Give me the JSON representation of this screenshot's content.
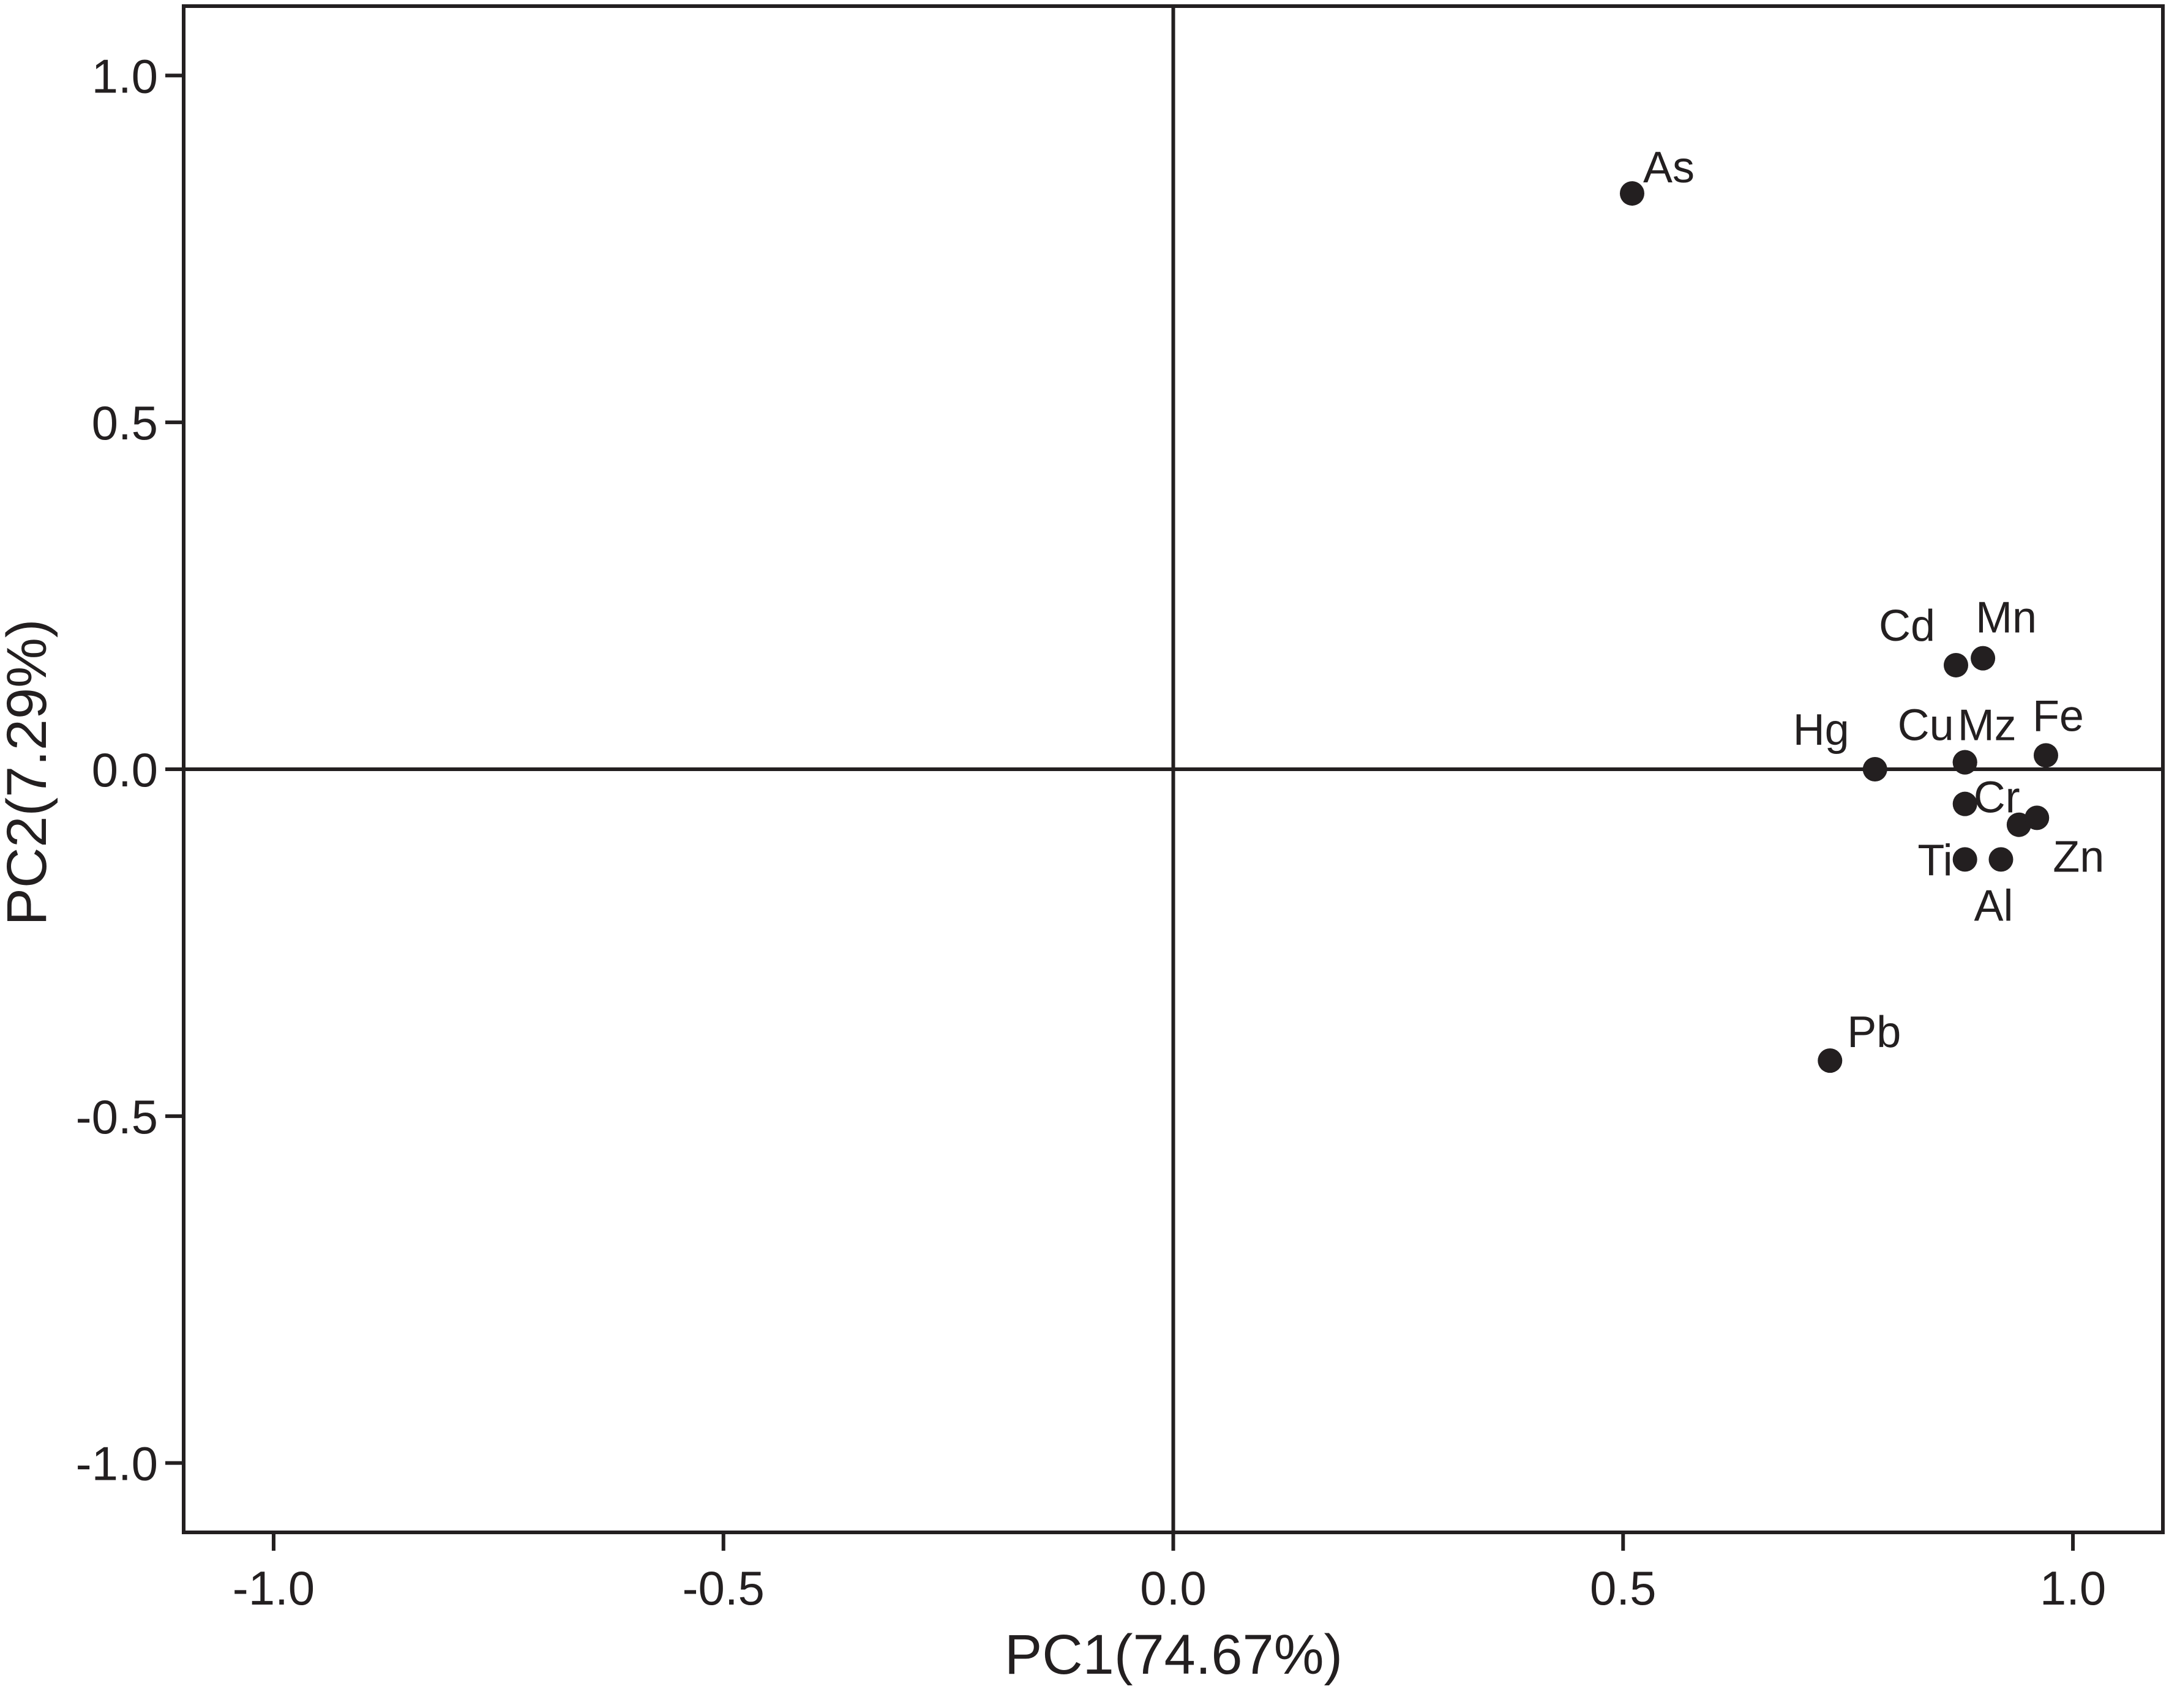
{
  "chart_data": {
    "type": "scatter",
    "title": "",
    "xlabel": "PC1(74.67%)",
    "ylabel": "PC2(7.29%)",
    "xlim": [
      -1.1,
      1.1
    ],
    "ylim": [
      -1.1,
      1.1
    ],
    "xticks": [
      {
        "value": -1.0,
        "label": "-1.0"
      },
      {
        "value": -0.5,
        "label": "-0.5"
      },
      {
        "value": 0.0,
        "label": "0.0"
      },
      {
        "value": 0.5,
        "label": "0.5"
      },
      {
        "value": 1.0,
        "label": "1.0"
      }
    ],
    "yticks": [
      {
        "value": 1.0,
        "label": "1.0"
      },
      {
        "value": 0.5,
        "label": "0.5"
      },
      {
        "value": 0.0,
        "label": "0.0"
      },
      {
        "value": -0.5,
        "label": "-0.5"
      },
      {
        "value": -1.0,
        "label": "-1.0"
      }
    ],
    "reference_lines": {
      "x": 0,
      "y": 0
    },
    "grid": false,
    "legend": "none",
    "marker_color": "#231f20",
    "points": [
      {
        "label": "As",
        "x": 0.51,
        "y": 0.83
      },
      {
        "label": "Cd",
        "x": 0.87,
        "y": 0.15
      },
      {
        "label": "Mn",
        "x": 0.9,
        "y": 0.16
      },
      {
        "label": "Hg",
        "x": 0.78,
        "y": 0.0
      },
      {
        "label": "Cu",
        "x": 0.88,
        "y": 0.01
      },
      {
        "label": "Mz",
        "x": 0.88,
        "y": 0.01
      },
      {
        "label": "Fe",
        "x": 0.97,
        "y": 0.02
      },
      {
        "label": "Cr",
        "x": 0.88,
        "y": -0.05
      },
      {
        "label": "",
        "x": 0.94,
        "y": -0.08
      },
      {
        "label": "Zn",
        "x": 0.96,
        "y": -0.07
      },
      {
        "label": "Ti",
        "x": 0.88,
        "y": -0.13
      },
      {
        "label": "Al",
        "x": 0.92,
        "y": -0.13
      },
      {
        "label": "Pb",
        "x": 0.73,
        "y": -0.42
      }
    ]
  }
}
